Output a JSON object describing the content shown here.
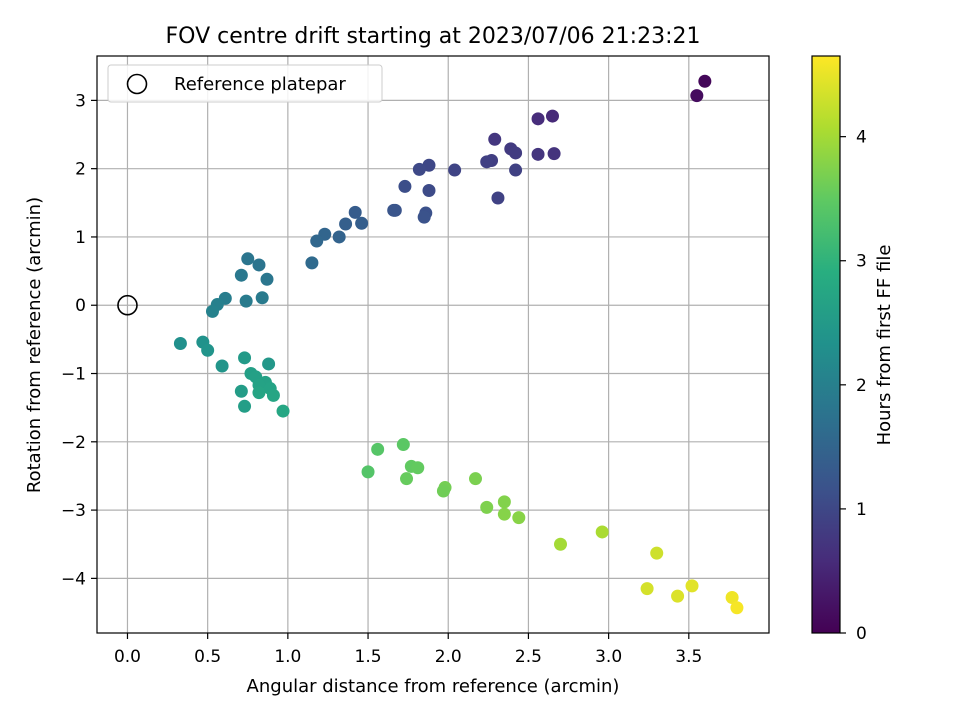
{
  "chart_data": {
    "type": "scatter",
    "title": "FOV centre drift starting at 2023/07/06 21:23:21",
    "xlabel": "Angular distance from reference (arcmin)",
    "ylabel": "Rotation from reference (arcmin)",
    "xlim": [
      -0.19,
      4.0
    ],
    "ylim": [
      -4.8,
      3.65
    ],
    "xticks": [
      0.0,
      0.5,
      1.0,
      1.5,
      2.0,
      2.5,
      3.0,
      3.5
    ],
    "xtick_labels": [
      "0.0",
      "0.5",
      "1.0",
      "1.5",
      "2.0",
      "2.5",
      "3.0",
      "3.5"
    ],
    "yticks": [
      -4,
      -3,
      -2,
      -1,
      0,
      1,
      2,
      3
    ],
    "ytick_labels": [
      "−4",
      "−3",
      "−2",
      "−1",
      "0",
      "1",
      "2",
      "3"
    ],
    "grid": true,
    "legend": {
      "position": "top-left",
      "entries": [
        {
          "label": "Reference platepar",
          "marker": "open-circle"
        }
      ]
    },
    "reference_point": {
      "x": 0.0,
      "y": 0.0
    },
    "colorbar": {
      "label": "Hours from first FF file",
      "colormap": "viridis",
      "range": [
        0,
        4.65
      ],
      "ticks": [
        0,
        1,
        2,
        3,
        4
      ],
      "tick_labels": [
        "0",
        "1",
        "2",
        "3",
        "4"
      ]
    },
    "points": [
      {
        "x": 3.6,
        "y": 3.28,
        "c": 0.08
      },
      {
        "x": 3.55,
        "y": 3.07,
        "c": 0.15
      },
      {
        "x": 2.65,
        "y": 2.77,
        "c": 0.55
      },
      {
        "x": 2.56,
        "y": 2.73,
        "c": 0.6
      },
      {
        "x": 2.29,
        "y": 2.43,
        "c": 0.75
      },
      {
        "x": 2.39,
        "y": 2.29,
        "c": 0.8
      },
      {
        "x": 2.42,
        "y": 2.23,
        "c": 0.82
      },
      {
        "x": 2.66,
        "y": 2.22,
        "c": 0.7
      },
      {
        "x": 2.56,
        "y": 2.21,
        "c": 0.72
      },
      {
        "x": 2.27,
        "y": 2.12,
        "c": 0.85
      },
      {
        "x": 2.24,
        "y": 2.1,
        "c": 0.88
      },
      {
        "x": 1.88,
        "y": 2.05,
        "c": 1.0
      },
      {
        "x": 2.04,
        "y": 1.98,
        "c": 0.95
      },
      {
        "x": 2.42,
        "y": 1.98,
        "c": 0.9
      },
      {
        "x": 1.82,
        "y": 1.99,
        "c": 1.02
      },
      {
        "x": 1.73,
        "y": 1.74,
        "c": 1.1
      },
      {
        "x": 1.88,
        "y": 1.68,
        "c": 1.05
      },
      {
        "x": 2.31,
        "y": 1.57,
        "c": 0.92
      },
      {
        "x": 1.67,
        "y": 1.39,
        "c": 1.2
      },
      {
        "x": 1.66,
        "y": 1.39,
        "c": 1.22
      },
      {
        "x": 1.86,
        "y": 1.35,
        "c": 1.15
      },
      {
        "x": 1.85,
        "y": 1.29,
        "c": 1.18
      },
      {
        "x": 1.42,
        "y": 1.36,
        "c": 1.35
      },
      {
        "x": 1.36,
        "y": 1.19,
        "c": 1.4
      },
      {
        "x": 1.46,
        "y": 1.2,
        "c": 1.38
      },
      {
        "x": 1.23,
        "y": 1.04,
        "c": 1.5
      },
      {
        "x": 1.32,
        "y": 1.0,
        "c": 1.48
      },
      {
        "x": 1.18,
        "y": 0.94,
        "c": 1.55
      },
      {
        "x": 1.15,
        "y": 0.62,
        "c": 1.6
      },
      {
        "x": 0.75,
        "y": 0.68,
        "c": 1.8
      },
      {
        "x": 0.82,
        "y": 0.59,
        "c": 1.78
      },
      {
        "x": 0.71,
        "y": 0.44,
        "c": 1.85
      },
      {
        "x": 0.87,
        "y": 0.38,
        "c": 1.82
      },
      {
        "x": 0.61,
        "y": 0.1,
        "c": 1.95
      },
      {
        "x": 0.84,
        "y": 0.11,
        "c": 1.9
      },
      {
        "x": 0.74,
        "y": 0.06,
        "c": 1.92
      },
      {
        "x": 0.56,
        "y": 0.01,
        "c": 2.0
      },
      {
        "x": 0.53,
        "y": -0.09,
        "c": 2.05
      },
      {
        "x": 0.33,
        "y": -0.56,
        "c": 2.3
      },
      {
        "x": 0.47,
        "y": -0.54,
        "c": 2.35
      },
      {
        "x": 0.5,
        "y": -0.66,
        "c": 2.38
      },
      {
        "x": 0.73,
        "y": -0.77,
        "c": 2.5
      },
      {
        "x": 0.88,
        "y": -0.86,
        "c": 2.45
      },
      {
        "x": 0.59,
        "y": -0.89,
        "c": 2.4
      },
      {
        "x": 0.77,
        "y": -1.0,
        "c": 2.6
      },
      {
        "x": 0.8,
        "y": -1.05,
        "c": 2.62
      },
      {
        "x": 0.86,
        "y": -1.13,
        "c": 2.65
      },
      {
        "x": 0.82,
        "y": -1.17,
        "c": 2.66
      },
      {
        "x": 0.89,
        "y": -1.22,
        "c": 2.68
      },
      {
        "x": 0.71,
        "y": -1.26,
        "c": 2.55
      },
      {
        "x": 0.82,
        "y": -1.28,
        "c": 2.7
      },
      {
        "x": 0.91,
        "y": -1.32,
        "c": 2.72
      },
      {
        "x": 0.73,
        "y": -1.48,
        "c": 2.58
      },
      {
        "x": 0.97,
        "y": -1.55,
        "c": 2.75
      },
      {
        "x": 1.72,
        "y": -2.04,
        "c": 3.45
      },
      {
        "x": 1.56,
        "y": -2.11,
        "c": 3.4
      },
      {
        "x": 1.77,
        "y": -2.36,
        "c": 3.5
      },
      {
        "x": 1.81,
        "y": -2.38,
        "c": 3.52
      },
      {
        "x": 1.5,
        "y": -2.44,
        "c": 3.38
      },
      {
        "x": 1.74,
        "y": -2.54,
        "c": 3.55
      },
      {
        "x": 2.17,
        "y": -2.54,
        "c": 3.7
      },
      {
        "x": 1.98,
        "y": -2.67,
        "c": 3.65
      },
      {
        "x": 1.97,
        "y": -2.72,
        "c": 3.62
      },
      {
        "x": 2.35,
        "y": -2.88,
        "c": 3.75
      },
      {
        "x": 2.24,
        "y": -2.96,
        "c": 3.72
      },
      {
        "x": 2.35,
        "y": -3.06,
        "c": 3.78
      },
      {
        "x": 2.44,
        "y": -3.11,
        "c": 3.8
      },
      {
        "x": 2.7,
        "y": -3.5,
        "c": 4.0
      },
      {
        "x": 2.96,
        "y": -3.32,
        "c": 4.05
      },
      {
        "x": 3.3,
        "y": -3.63,
        "c": 4.3
      },
      {
        "x": 3.24,
        "y": -4.15,
        "c": 4.35
      },
      {
        "x": 3.52,
        "y": -4.11,
        "c": 4.45
      },
      {
        "x": 3.43,
        "y": -4.26,
        "c": 4.4
      },
      {
        "x": 3.77,
        "y": -4.28,
        "c": 4.55
      },
      {
        "x": 3.8,
        "y": -4.43,
        "c": 4.6
      }
    ]
  }
}
